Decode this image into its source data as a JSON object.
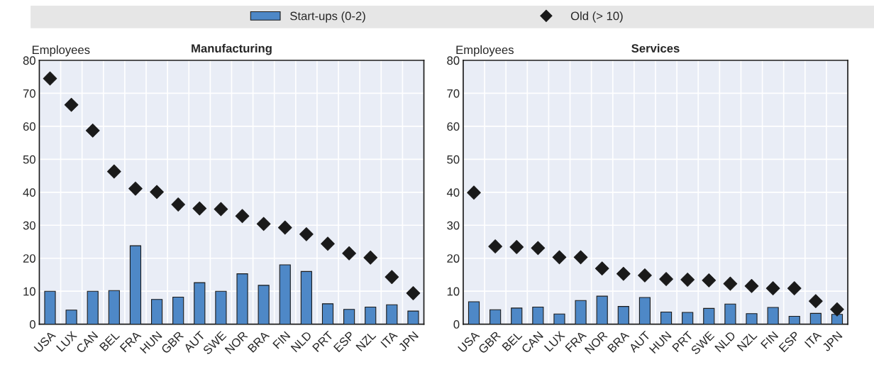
{
  "chart_data": [
    {
      "type": "bar",
      "title": "Manufacturing",
      "ylabel": "Employees",
      "categories": [
        "USA",
        "LUX",
        "CAN",
        "BEL",
        "FRA",
        "HUN",
        "GBR",
        "AUT",
        "SWE",
        "NOR",
        "BRA",
        "FIN",
        "NLD",
        "PRT",
        "ESP",
        "NZL",
        "ITA",
        "JPN"
      ],
      "series": [
        {
          "name": "Start-ups (0-2)",
          "color": "#4e88c7",
          "values": [
            10,
            4.3,
            10,
            10.2,
            23.8,
            7.5,
            8.2,
            12.6,
            10,
            15.3,
            11.8,
            18,
            16,
            6.2,
            4.5,
            5.2,
            5.9,
            4.0
          ]
        },
        {
          "name": "Old (> 10)",
          "type": "scatter",
          "marker": "diamond",
          "color": "#1a1a1a",
          "values": [
            74.5,
            66.5,
            58.7,
            46.3,
            41.1,
            40.1,
            36.3,
            35.1,
            34.9,
            32.8,
            30.4,
            29.3,
            27.3,
            24.4,
            21.5,
            20.2,
            14.3,
            9.4
          ]
        }
      ],
      "ylim": [
        0,
        80
      ],
      "yticks": [
        0,
        10,
        20,
        30,
        40,
        50,
        60,
        70,
        80
      ],
      "grid": true,
      "legend": "top"
    },
    {
      "type": "bar",
      "title": "Services",
      "ylabel": "Employees",
      "categories": [
        "USA",
        "GBR",
        "BEL",
        "CAN",
        "LUX",
        "FRA",
        "NOR",
        "BRA",
        "AUT",
        "HUN",
        "PRT",
        "SWE",
        "NLD",
        "NZL",
        "FIN",
        "ESP",
        "ITA",
        "JPN"
      ],
      "series": [
        {
          "color": "#4e88c7",
          "values": [
            6.8,
            4.4,
            4.9,
            5.2,
            3.1,
            7.2,
            8.5,
            5.4,
            8.1,
            3.7,
            3.6,
            4.8,
            6.1,
            3.2,
            5.1,
            2.4,
            3.3,
            3.0
          ]
        },
        {
          "type": "scatter",
          "marker": "diamond",
          "color": "#1a1a1a",
          "values": [
            39.9,
            23.6,
            23.4,
            23.1,
            20.3,
            20.3,
            16.9,
            15.3,
            14.8,
            13.7,
            13.5,
            13.3,
            12.3,
            11.6,
            10.9,
            10.9,
            7.0,
            4.5
          ]
        }
      ],
      "ylim": [
        0,
        80
      ],
      "yticks": [
        0,
        10,
        20,
        30,
        40,
        50,
        60,
        70,
        80
      ],
      "grid": true
    }
  ]
}
